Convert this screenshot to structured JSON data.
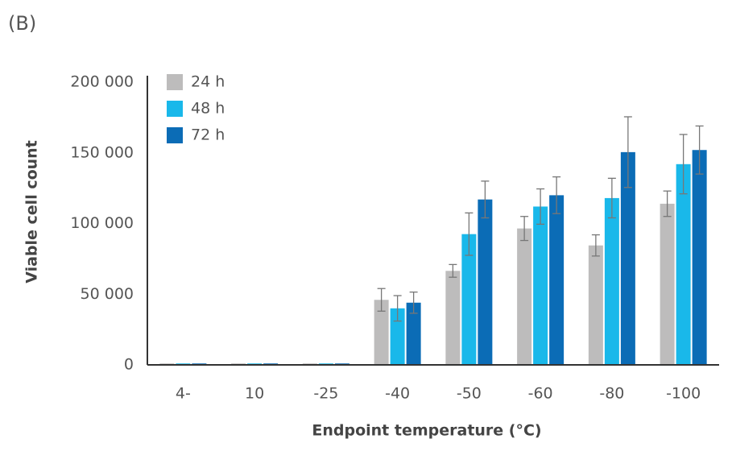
{
  "chart_data": {
    "type": "bar",
    "panel_label": "(B)",
    "y_label": "Viable cell count",
    "x_label": "Endpoint temperature (°C)",
    "categories": [
      "4-",
      "10",
      "-25",
      "-40",
      "-50",
      "-60",
      "-80",
      "-100"
    ],
    "series": [
      {
        "name": "24 h",
        "color": "#bdbcbc",
        "values": [
          1000,
          1000,
          1000,
          46000,
          66500,
          96500,
          84500,
          114000
        ],
        "errors": [
          0,
          0,
          0,
          8000,
          4500,
          8500,
          7500,
          9000
        ]
      },
      {
        "name": "48 h",
        "color": "#19b8ea",
        "values": [
          1000,
          1000,
          1000,
          40000,
          92500,
          112000,
          118000,
          142000
        ],
        "errors": [
          0,
          0,
          0,
          9000,
          15000,
          12500,
          14000,
          21000
        ]
      },
      {
        "name": "72 h",
        "color": "#0b6cb6",
        "values": [
          1000,
          1000,
          1000,
          44000,
          117000,
          120000,
          150500,
          152000
        ],
        "errors": [
          0,
          0,
          0,
          7500,
          13000,
          13000,
          25000,
          17000
        ]
      }
    ],
    "ylim": [
      0,
      200000
    ],
    "yticks": [
      0,
      {
        "value": 50000,
        "label": "50 000"
      },
      {
        "value": 100000,
        "label": "100 000"
      },
      {
        "value": 150000,
        "label": "150 000"
      },
      {
        "value": 200000,
        "label": "200 000"
      }
    ],
    "grid": false,
    "legend": "upper-left"
  }
}
